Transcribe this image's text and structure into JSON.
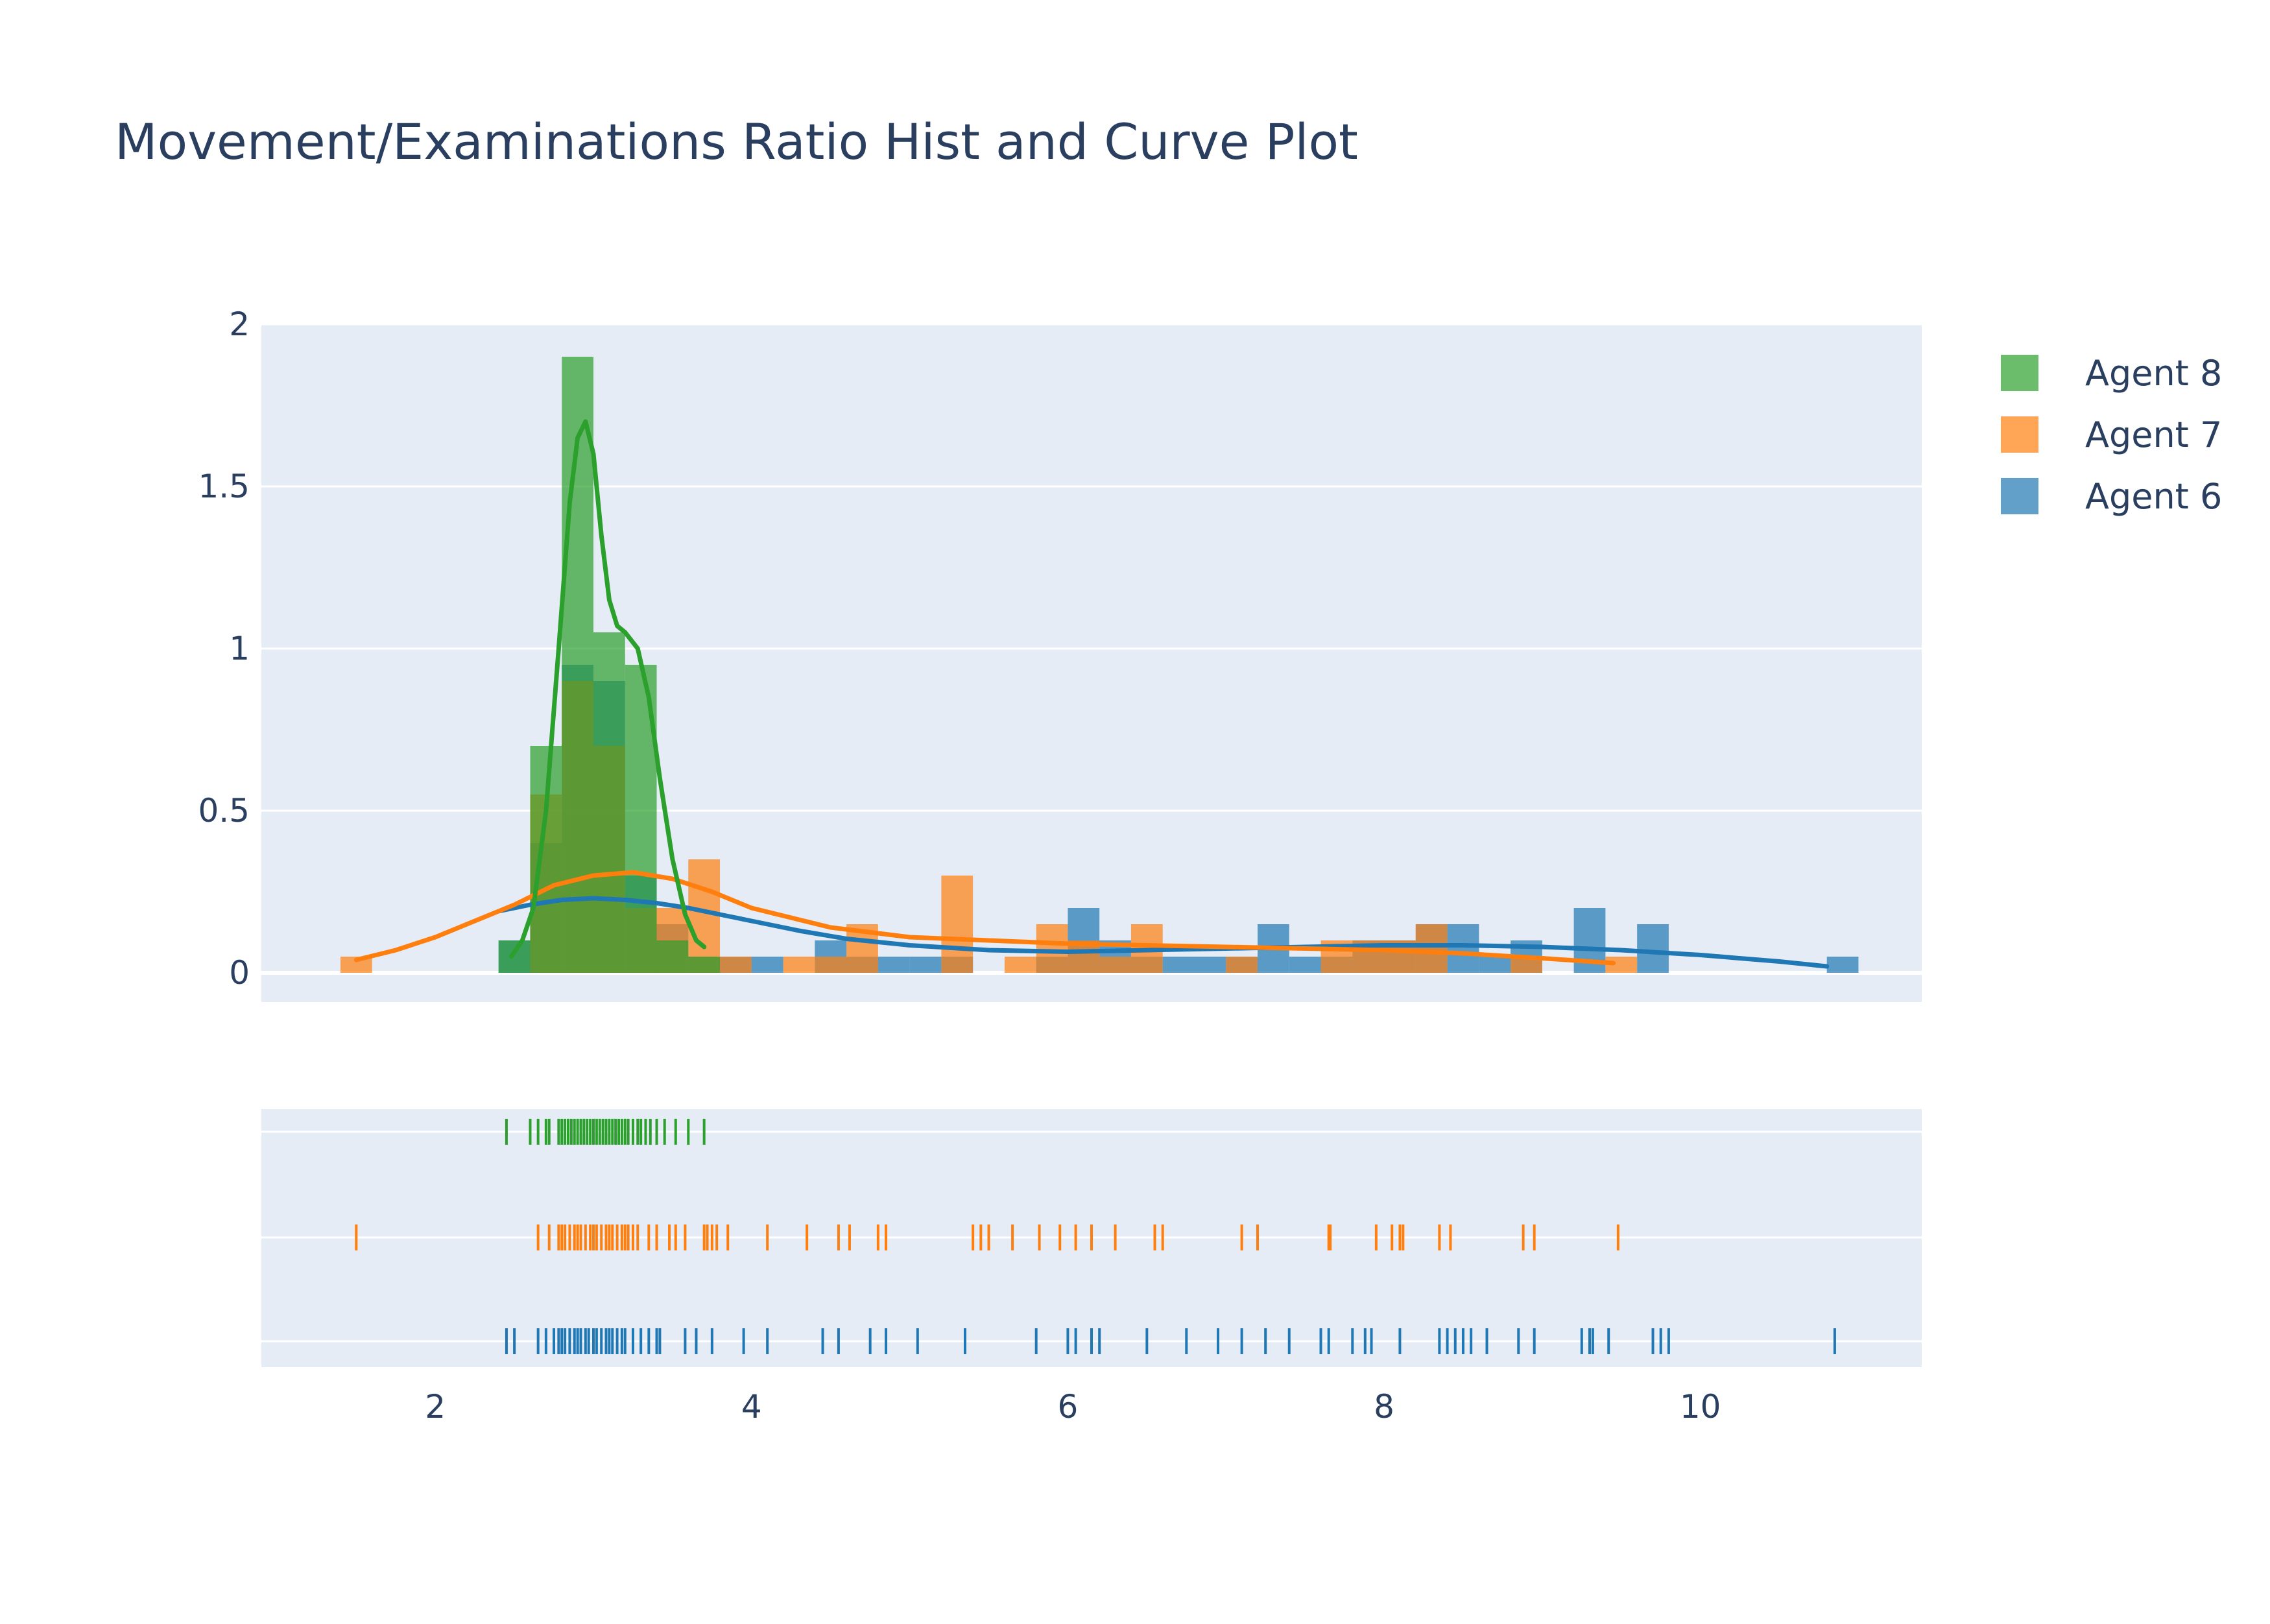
{
  "chart_data": {
    "type": "histogram+kde+rug",
    "title": "Movement/Examinations Ratio Hist and Curve Plot",
    "xlabel": "",
    "ylabel": "",
    "xlim": [
      0.9,
      11.4
    ],
    "ylim": [
      -0.09,
      2.0
    ],
    "x_ticks": [
      2,
      4,
      6,
      8,
      10
    ],
    "y_ticks": [
      0,
      0.5,
      1,
      1.5,
      2
    ],
    "grid": true,
    "legend": {
      "placement": "top-right",
      "entries": [
        "Agent 8",
        "Agent 7",
        "Agent 6"
      ]
    },
    "bin_width": 0.2,
    "series": [
      {
        "name": "Agent 6",
        "color": "#1f77b4",
        "histogram": [
          {
            "x0": 2.4,
            "value": 0.1
          },
          {
            "x0": 2.6,
            "value": 0.4
          },
          {
            "x0": 2.8,
            "value": 0.95
          },
          {
            "x0": 3.0,
            "value": 0.9
          },
          {
            "x0": 3.2,
            "value": 0.3
          },
          {
            "x0": 3.4,
            "value": 0.15
          },
          {
            "x0": 3.6,
            "value": 0.05
          },
          {
            "x0": 3.8,
            "value": 0.05
          },
          {
            "x0": 4.0,
            "value": 0.05
          },
          {
            "x0": 4.4,
            "value": 0.1
          },
          {
            "x0": 4.6,
            "value": 0.05
          },
          {
            "x0": 4.8,
            "value": 0.05
          },
          {
            "x0": 5.0,
            "value": 0.05
          },
          {
            "x0": 5.2,
            "value": 0.05
          },
          {
            "x0": 5.8,
            "value": 0.05
          },
          {
            "x0": 6.0,
            "value": 0.2
          },
          {
            "x0": 6.2,
            "value": 0.1
          },
          {
            "x0": 6.4,
            "value": 0.05
          },
          {
            "x0": 6.6,
            "value": 0.05
          },
          {
            "x0": 6.8,
            "value": 0.05
          },
          {
            "x0": 7.0,
            "value": 0.05
          },
          {
            "x0": 7.2,
            "value": 0.15
          },
          {
            "x0": 7.4,
            "value": 0.05
          },
          {
            "x0": 7.6,
            "value": 0.05
          },
          {
            "x0": 7.8,
            "value": 0.1
          },
          {
            "x0": 8.0,
            "value": 0.1
          },
          {
            "x0": 8.2,
            "value": 0.15
          },
          {
            "x0": 8.4,
            "value": 0.15
          },
          {
            "x0": 8.6,
            "value": 0.05
          },
          {
            "x0": 8.8,
            "value": 0.1
          },
          {
            "x0": 9.2,
            "value": 0.2
          },
          {
            "x0": 9.6,
            "value": 0.15
          },
          {
            "x0": 10.8,
            "value": 0.05
          }
        ],
        "curve": {
          "x": [
            2.4,
            2.6,
            2.8,
            3.0,
            3.2,
            3.4,
            3.6,
            3.8,
            4.0,
            4.3,
            4.6,
            5.0,
            5.5,
            6.0,
            6.5,
            7.0,
            7.5,
            8.0,
            8.5,
            9.0,
            9.5,
            10.0,
            10.5,
            10.8
          ],
          "y": [
            0.19,
            0.21,
            0.225,
            0.23,
            0.225,
            0.215,
            0.2,
            0.18,
            0.16,
            0.13,
            0.105,
            0.085,
            0.07,
            0.065,
            0.07,
            0.075,
            0.08,
            0.085,
            0.085,
            0.08,
            0.07,
            0.055,
            0.035,
            0.02
          ]
        },
        "rug": [
          2.45,
          2.5,
          2.65,
          2.7,
          2.75,
          2.78,
          2.8,
          2.82,
          2.85,
          2.88,
          2.9,
          2.92,
          2.95,
          2.97,
          3.0,
          3.02,
          3.05,
          3.08,
          3.1,
          3.12,
          3.15,
          3.18,
          3.2,
          3.25,
          3.3,
          3.35,
          3.4,
          3.42,
          3.58,
          3.65,
          3.75,
          3.95,
          4.1,
          4.45,
          4.55,
          4.75,
          4.85,
          5.05,
          5.35,
          5.8,
          6.0,
          6.05,
          6.15,
          6.2,
          6.5,
          6.75,
          6.95,
          7.1,
          7.25,
          7.4,
          7.6,
          7.65,
          7.8,
          7.88,
          7.92,
          8.1,
          8.35,
          8.4,
          8.45,
          8.5,
          8.55,
          8.65,
          8.85,
          8.95,
          9.25,
          9.3,
          9.32,
          9.42,
          9.7,
          9.75,
          9.8,
          10.85
        ]
      },
      {
        "name": "Agent 7",
        "color": "#ff7f0e",
        "histogram": [
          {
            "x0": 1.4,
            "value": 0.05
          },
          {
            "x0": 2.6,
            "value": 0.55
          },
          {
            "x0": 2.8,
            "value": 0.9
          },
          {
            "x0": 3.0,
            "value": 0.7
          },
          {
            "x0": 3.2,
            "value": 0.2
          },
          {
            "x0": 3.4,
            "value": 0.2
          },
          {
            "x0": 3.6,
            "value": 0.35
          },
          {
            "x0": 3.8,
            "value": 0.05
          },
          {
            "x0": 4.2,
            "value": 0.05
          },
          {
            "x0": 4.4,
            "value": 0.05
          },
          {
            "x0": 4.6,
            "value": 0.15
          },
          {
            "x0": 5.2,
            "value": 0.3
          },
          {
            "x0": 5.6,
            "value": 0.05
          },
          {
            "x0": 5.8,
            "value": 0.15
          },
          {
            "x0": 6.0,
            "value": 0.1
          },
          {
            "x0": 6.2,
            "value": 0.05
          },
          {
            "x0": 6.4,
            "value": 0.15
          },
          {
            "x0": 7.0,
            "value": 0.05
          },
          {
            "x0": 7.6,
            "value": 0.1
          },
          {
            "x0": 7.8,
            "value": 0.1
          },
          {
            "x0": 8.0,
            "value": 0.1
          },
          {
            "x0": 8.2,
            "value": 0.15
          },
          {
            "x0": 8.8,
            "value": 0.05
          },
          {
            "x0": 9.4,
            "value": 0.05
          }
        ],
        "curve": {
          "x": [
            1.5,
            1.75,
            2.0,
            2.25,
            2.5,
            2.75,
            3.0,
            3.25,
            3.5,
            3.75,
            4.0,
            4.5,
            5.0,
            5.5,
            6.0,
            6.5,
            7.0,
            7.5,
            8.0,
            8.5,
            9.0,
            9.45
          ],
          "y": [
            0.04,
            0.07,
            0.11,
            0.16,
            0.21,
            0.27,
            0.3,
            0.31,
            0.29,
            0.25,
            0.2,
            0.14,
            0.11,
            0.1,
            0.09,
            0.085,
            0.08,
            0.075,
            0.07,
            0.06,
            0.045,
            0.03
          ]
        },
        "rug": [
          1.5,
          2.65,
          2.72,
          2.78,
          2.8,
          2.82,
          2.85,
          2.88,
          2.9,
          2.92,
          2.95,
          2.98,
          3.0,
          3.02,
          3.05,
          3.08,
          3.1,
          3.12,
          3.15,
          3.18,
          3.2,
          3.22,
          3.25,
          3.28,
          3.35,
          3.4,
          3.48,
          3.52,
          3.58,
          3.7,
          3.72,
          3.75,
          3.78,
          3.85,
          4.1,
          4.35,
          4.55,
          4.62,
          4.8,
          4.85,
          5.4,
          5.45,
          5.5,
          5.65,
          5.82,
          5.95,
          6.05,
          6.15,
          6.3,
          6.55,
          6.6,
          7.1,
          7.2,
          7.65,
          7.66,
          7.95,
          8.05,
          8.1,
          8.12,
          8.35,
          8.42,
          8.88,
          8.95,
          9.48
        ]
      },
      {
        "name": "Agent 8",
        "color": "#2ca02c",
        "histogram": [
          {
            "x0": 2.4,
            "value": 0.1
          },
          {
            "x0": 2.6,
            "value": 0.7
          },
          {
            "x0": 2.8,
            "value": 1.9
          },
          {
            "x0": 3.0,
            "value": 1.05
          },
          {
            "x0": 3.2,
            "value": 0.95
          },
          {
            "x0": 3.4,
            "value": 0.1
          },
          {
            "x0": 3.6,
            "value": 0.05
          }
        ],
        "curve": {
          "x": [
            2.48,
            2.55,
            2.62,
            2.7,
            2.78,
            2.85,
            2.9,
            2.95,
            3.0,
            3.05,
            3.1,
            3.15,
            3.2,
            3.28,
            3.35,
            3.42,
            3.5,
            3.58,
            3.65,
            3.7
          ],
          "y": [
            0.05,
            0.1,
            0.2,
            0.5,
            1.0,
            1.45,
            1.65,
            1.7,
            1.6,
            1.35,
            1.15,
            1.07,
            1.05,
            1.0,
            0.85,
            0.6,
            0.35,
            0.18,
            0.1,
            0.08
          ]
        },
        "rug": [
          2.45,
          2.6,
          2.65,
          2.7,
          2.72,
          2.78,
          2.8,
          2.82,
          2.84,
          2.86,
          2.88,
          2.9,
          2.92,
          2.94,
          2.96,
          2.98,
          3.0,
          3.02,
          3.04,
          3.06,
          3.08,
          3.1,
          3.12,
          3.14,
          3.16,
          3.18,
          3.2,
          3.22,
          3.25,
          3.28,
          3.3,
          3.33,
          3.36,
          3.4,
          3.45,
          3.52,
          3.6,
          3.7
        ]
      }
    ]
  }
}
